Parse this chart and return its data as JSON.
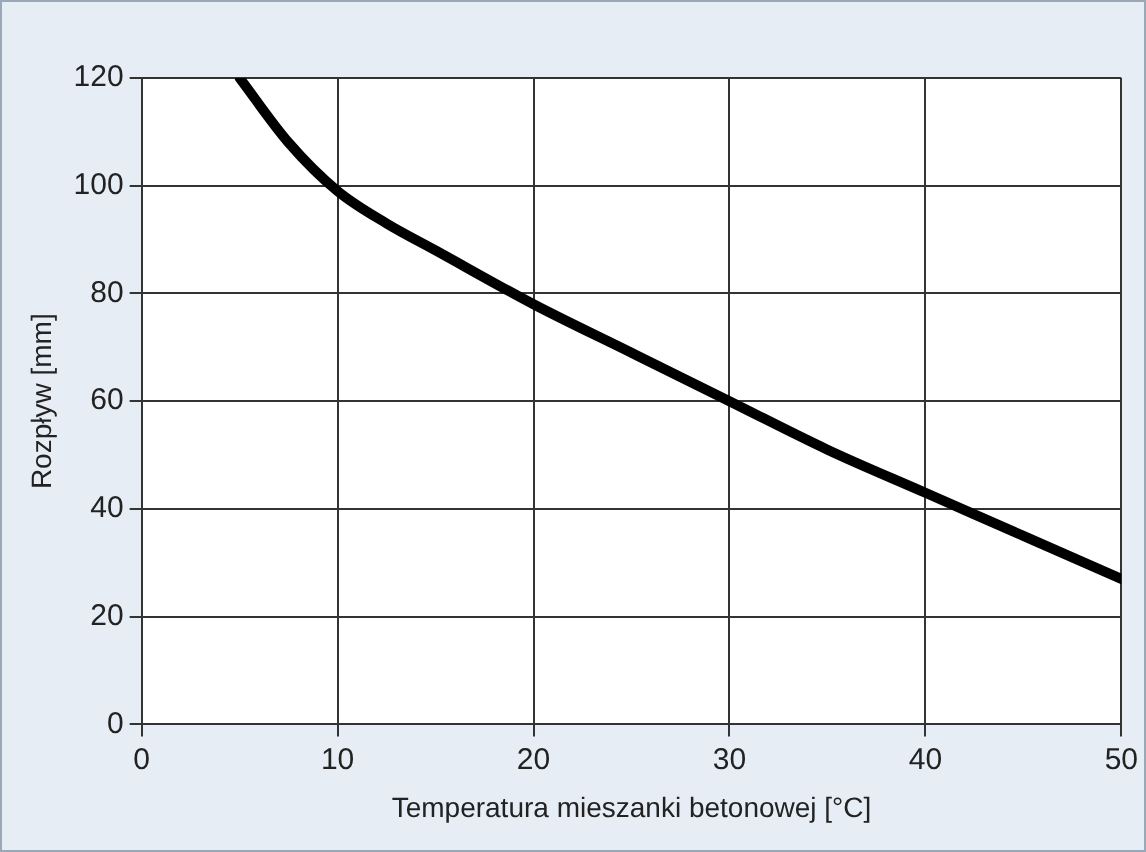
{
  "chart_data": {
    "type": "line",
    "xlabel": "Temperatura mieszanki betonowej [°C]",
    "ylabel": "Rozpływ [mm]",
    "x": [
      5,
      7.5,
      10,
      12.5,
      15,
      20,
      25,
      30,
      35,
      40,
      45,
      50
    ],
    "series": [
      {
        "color": "#000000",
        "values": [
          120,
          108,
          99,
          93,
          88,
          78,
          69,
          60,
          51,
          43,
          35,
          27
        ]
      }
    ],
    "xlim": [
      0,
      50
    ],
    "xticks": [
      0,
      10,
      20,
      30,
      40,
      50
    ],
    "ylim": [
      0,
      120
    ],
    "yticks": [
      0,
      20,
      40,
      60,
      80,
      100,
      120
    ],
    "grid": true,
    "marker": "none",
    "line_style": "solid",
    "legend": false
  }
}
